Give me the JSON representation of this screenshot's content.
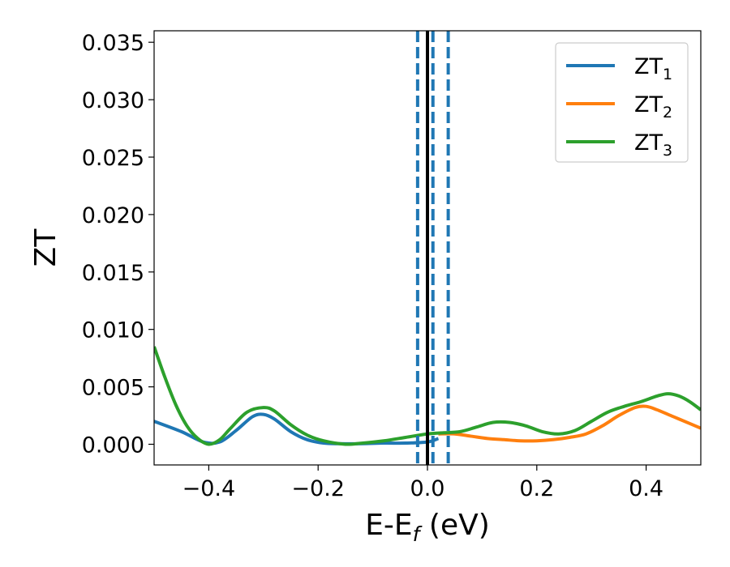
{
  "chart_data": {
    "type": "line",
    "title": "",
    "xlabel": "E-E",
    "xlabel_sub": "f",
    "xlabel_suffix": " (eV)",
    "ylabel": "ZT",
    "xlim": [
      -0.5,
      0.5
    ],
    "ylim": [
      -0.0018,
      0.036
    ],
    "x_ticks": [
      -0.4,
      -0.2,
      0.0,
      0.2,
      0.4
    ],
    "x_tick_labels": [
      "−0.4",
      "−0.2",
      "0.0",
      "0.2",
      "0.4"
    ],
    "y_ticks": [
      0.0,
      0.005,
      0.01,
      0.015,
      0.02,
      0.025,
      0.03,
      0.035
    ],
    "y_tick_labels": [
      "0.000",
      "0.005",
      "0.010",
      "0.015",
      "0.020",
      "0.025",
      "0.030",
      "0.035"
    ],
    "grid": false,
    "legend_position": "top-right",
    "series": [
      {
        "name": "ZT",
        "name_sub": "1",
        "color": "#1f77b4",
        "x": [
          -0.5,
          -0.45,
          -0.41,
          -0.38,
          -0.35,
          -0.32,
          -0.3,
          -0.28,
          -0.25,
          -0.22,
          -0.19,
          -0.16,
          -0.12,
          -0.08,
          -0.04,
          0.0,
          0.02
        ],
        "y": [
          0.002,
          0.0011,
          0.0002,
          0.0002,
          0.0012,
          0.0024,
          0.0026,
          0.0022,
          0.0011,
          0.0004,
          0.0001,
          5e-05,
          5e-05,
          0.0001,
          0.0001,
          0.0002,
          0.0005
        ]
      },
      {
        "name": "ZT",
        "name_sub": "2",
        "color": "#ff7f0e",
        "x": [
          0.02,
          0.05,
          0.08,
          0.11,
          0.14,
          0.17,
          0.2,
          0.23,
          0.26,
          0.29,
          0.32,
          0.35,
          0.38,
          0.4,
          0.42,
          0.45,
          0.48,
          0.5
        ],
        "y": [
          0.0009,
          0.0009,
          0.0007,
          0.0005,
          0.0004,
          0.0003,
          0.0003,
          0.0004,
          0.0006,
          0.0009,
          0.0016,
          0.0025,
          0.0032,
          0.0033,
          0.003,
          0.0024,
          0.0018,
          0.0014
        ]
      },
      {
        "name": "ZT",
        "name_sub": "3",
        "color": "#2ca02c",
        "x": [
          -0.5,
          -0.48,
          -0.46,
          -0.44,
          -0.42,
          -0.4,
          -0.38,
          -0.36,
          -0.33,
          -0.3,
          -0.28,
          -0.25,
          -0.22,
          -0.19,
          -0.15,
          -0.12,
          -0.08,
          -0.04,
          0.0,
          0.03,
          0.06,
          0.09,
          0.12,
          0.15,
          0.18,
          0.21,
          0.24,
          0.27,
          0.3,
          0.33,
          0.36,
          0.39,
          0.42,
          0.44,
          0.46,
          0.48,
          0.5
        ],
        "y": [
          0.0085,
          0.0058,
          0.0034,
          0.0016,
          0.0005,
          0.0,
          0.0004,
          0.0014,
          0.0028,
          0.0032,
          0.0029,
          0.0017,
          0.0008,
          0.0003,
          0.0,
          0.0001,
          0.0003,
          0.0006,
          0.0009,
          0.001,
          0.0011,
          0.0015,
          0.0019,
          0.0019,
          0.0016,
          0.0011,
          0.0009,
          0.0012,
          0.002,
          0.0028,
          0.0033,
          0.0037,
          0.0042,
          0.0044,
          0.0042,
          0.0037,
          0.003
        ]
      }
    ],
    "vertical_lines": [
      {
        "x": 0.0,
        "style": "solid",
        "color": "#000000"
      },
      {
        "x": -0.018,
        "style": "dashed",
        "color": "#1f77b4"
      },
      {
        "x": 0.01,
        "style": "dashed",
        "color": "#1f77b4"
      },
      {
        "x": 0.038,
        "style": "dashed",
        "color": "#1f77b4"
      }
    ]
  }
}
